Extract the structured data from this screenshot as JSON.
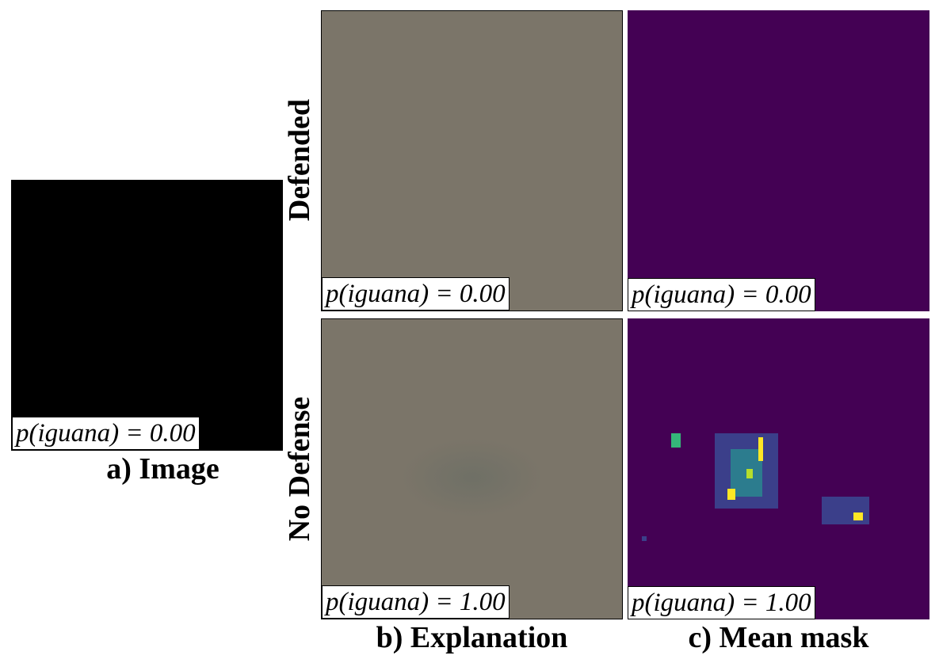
{
  "columns": {
    "image": "a) Image",
    "explanation": "b) Explanation",
    "mean_mask": "c) Mean mask"
  },
  "rows": {
    "defended": "Defended",
    "no_defense": "No Defense"
  },
  "panels": {
    "image": "p(iguana) = 0.00",
    "defended_explanation": "p(iguana) = 0.00",
    "defended_mask": "p(iguana) = 0.00",
    "no_defense_explanation": "p(iguana) = 1.00",
    "no_defense_mask": "p(iguana) = 1.00"
  }
}
